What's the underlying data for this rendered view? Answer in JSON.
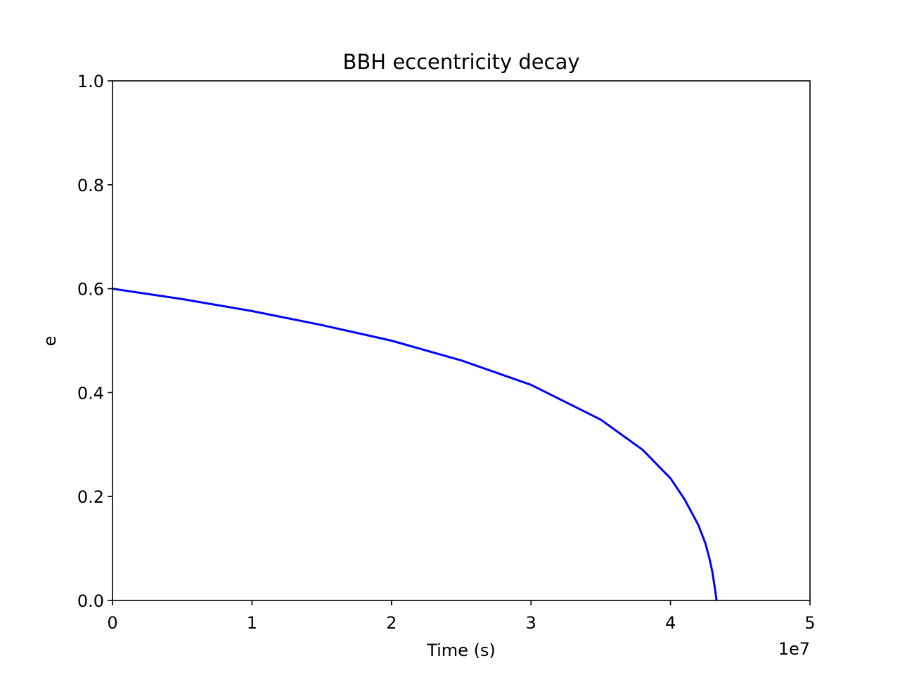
{
  "chart_data": {
    "type": "line",
    "title": "BBH eccentricity decay",
    "xlabel": "Time (s)",
    "ylabel": "e",
    "x_offset_label": "1e7",
    "xlim": [
      0,
      5
    ],
    "ylim": [
      0,
      1
    ],
    "x_ticks": [
      "0",
      "1",
      "2",
      "3",
      "4",
      "5"
    ],
    "y_ticks": [
      "0.0",
      "0.2",
      "0.4",
      "0.6",
      "0.8",
      "1.0"
    ],
    "grid": false,
    "legend": "none",
    "series": [
      {
        "color": "#0000ff",
        "x": [
          0,
          0.5,
          1.0,
          1.5,
          2.0,
          2.5,
          3.0,
          3.5,
          3.8,
          4.0,
          4.1,
          4.2,
          4.25,
          4.28,
          4.3,
          4.32,
          4.33
        ],
        "y": [
          0.6,
          0.58,
          0.557,
          0.53,
          0.5,
          0.462,
          0.415,
          0.348,
          0.29,
          0.235,
          0.195,
          0.145,
          0.11,
          0.08,
          0.055,
          0.02,
          0.0
        ]
      }
    ]
  }
}
